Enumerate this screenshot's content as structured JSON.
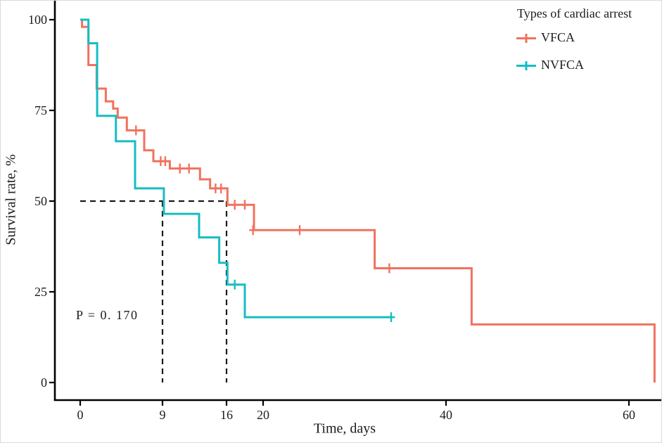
{
  "figure": {
    "p_value_label": "P = 0. 170"
  },
  "chart_data": {
    "type": "line",
    "subtype": "kaplan-meier-step",
    "title": "",
    "xlabel": "Time, days",
    "ylabel": "Survival rate, %",
    "x_ticks": [
      0,
      9,
      16,
      20,
      40,
      60
    ],
    "y_ticks": [
      0,
      25,
      50,
      75,
      100
    ],
    "xlim": [
      0,
      63.6
    ],
    "ylim": [
      0,
      100
    ],
    "grid": false,
    "axis_color": "#000000",
    "guide_color": "#1a1a1a",
    "legend": {
      "title": "Types of cardiac arrest",
      "position": "top-right",
      "items": [
        {
          "label": "VFCA",
          "color": "#f0725f"
        },
        {
          "label": "NVFCA",
          "color": "#16bdc3"
        }
      ]
    },
    "series": [
      {
        "name": "VFCA",
        "color": "#f0725f",
        "steps": [
          [
            0,
            100
          ],
          [
            0.2,
            98
          ],
          [
            0.9,
            87.5
          ],
          [
            1.8,
            81
          ],
          [
            2.8,
            77.5
          ],
          [
            3.6,
            75.5
          ],
          [
            4.1,
            73
          ],
          [
            5.1,
            69.5
          ],
          [
            7,
            64
          ],
          [
            8,
            61
          ],
          [
            9.8,
            59
          ],
          [
            13.1,
            56
          ],
          [
            14.2,
            53.5
          ],
          [
            16.1,
            49
          ],
          [
            19,
            42
          ],
          [
            32.2,
            31.5
          ],
          [
            42.8,
            16
          ],
          [
            62.8,
            0
          ]
        ],
        "censor_marks": [
          [
            6.1,
            69.5
          ],
          [
            8.8,
            61
          ],
          [
            9.3,
            61
          ],
          [
            10.9,
            59
          ],
          [
            11.9,
            59
          ],
          [
            14.8,
            53.5
          ],
          [
            15.4,
            53.5
          ],
          [
            16.9,
            49
          ],
          [
            18,
            49
          ],
          [
            18.9,
            42
          ],
          [
            24,
            42
          ],
          [
            33.8,
            31.5
          ]
        ],
        "end_t": 62.8
      },
      {
        "name": "NVFCA",
        "color": "#16bdc3",
        "steps": [
          [
            0,
            100
          ],
          [
            0.9,
            93.5
          ],
          [
            1.85,
            73.5
          ],
          [
            3.9,
            66.5
          ],
          [
            6,
            53.5
          ],
          [
            9.15,
            46.5
          ],
          [
            13,
            40
          ],
          [
            15.2,
            33
          ],
          [
            16.1,
            27
          ],
          [
            18,
            18
          ]
        ],
        "censor_marks": [
          [
            16.9,
            27
          ],
          [
            34,
            18
          ]
        ],
        "end_t": 34.2
      }
    ],
    "median_guides": {
      "survival_percent": 50,
      "median_days": [
        9,
        16
      ],
      "style": "dashed"
    },
    "annotation": {
      "text": "P = 0. 170",
      "x_days": -0.4,
      "y_percent": 18.5
    }
  }
}
